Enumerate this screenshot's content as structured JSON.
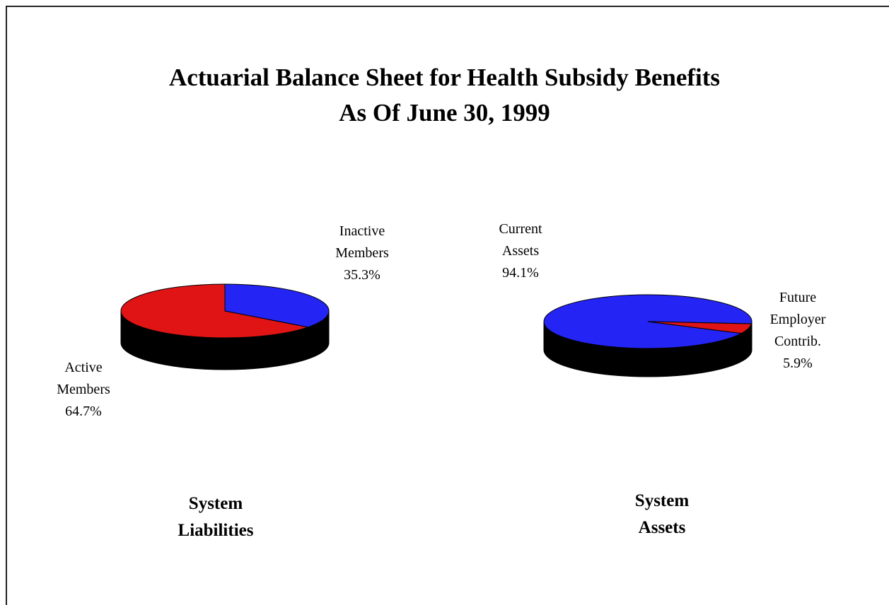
{
  "title": "Actuarial Balance Sheet for Health Subsidy Benefits",
  "subtitle": "As Of June 30, 1999",
  "chart_data": [
    {
      "type": "pie",
      "title": "System Liabilities",
      "categories": [
        "Inactive Members",
        "Active Members"
      ],
      "values": [
        35.3,
        64.7
      ],
      "value_labels": [
        "35.3%",
        "64.7%"
      ],
      "colors": [
        "#2424f4",
        "#e01414"
      ]
    },
    {
      "type": "pie",
      "title": "System Assets",
      "categories": [
        "Current Assets",
        "Future Employer Contrib."
      ],
      "values": [
        94.1,
        5.9
      ],
      "value_labels": [
        "94.1%",
        "5.9%"
      ],
      "colors": [
        "#2424f4",
        "#e01414"
      ]
    }
  ]
}
